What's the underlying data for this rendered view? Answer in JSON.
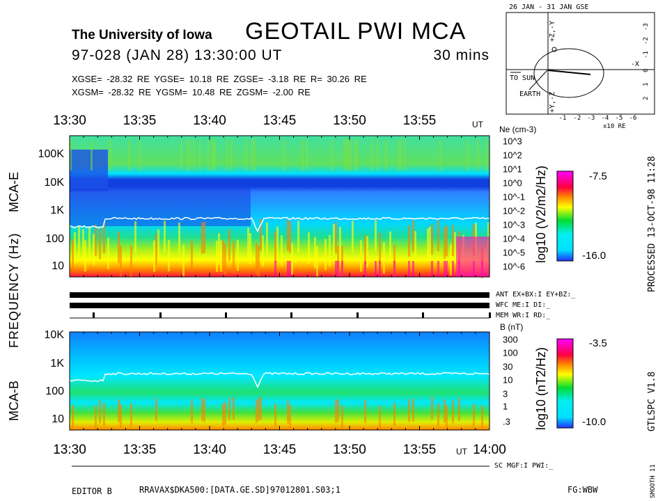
{
  "header": {
    "institution": "The University of Iowa",
    "title": "GEOTAIL PWI MCA",
    "date_line": "97-028 (JAN 28) 13:30:00 UT",
    "duration": "30 mins",
    "gse_line": "XGSE= -28.32 RE   YGSE=  10.18 RE   ZGSE=  -3.18 RE   R= 30.26 RE",
    "gsm_line": "XGSM= -28.32 RE   YGSM=  10.48 RE   ZGSM=  -2.00 RE"
  },
  "orbit_plot": {
    "title": "26 JAN - 31 JAN  GSE",
    "x_ticks": [
      "-1",
      "-2",
      "-3",
      "-4",
      "-5",
      "-6"
    ],
    "x_unit": "x10 RE",
    "y_ticks": [
      "-3",
      "-2",
      "-1",
      "0",
      "1",
      "2"
    ],
    "axis_label_top": "+Z,-Y",
    "axis_label_bottom": "+Y,-Z",
    "axis_label_right": "-X",
    "to_sun": "TO SUN",
    "earth": "EARTH"
  },
  "time_axis": {
    "labels": [
      "13:30",
      "13:35",
      "13:40",
      "13:45",
      "13:50",
      "13:55"
    ],
    "ut": "UT",
    "end": "14:00"
  },
  "left_labels": {
    "frequency": "FREQUENCY (Hz)",
    "mca_e": "MCA-E",
    "mca_b": "MCA-B"
  },
  "chart_data": [
    {
      "type": "heatmap",
      "name": "MCA-E",
      "x_range": [
        "13:30",
        "14:00"
      ],
      "ylabel": "FREQUENCY (Hz)",
      "y_scale": "log",
      "y_ticks": [
        "100K",
        "10K",
        "1K",
        "100",
        "10"
      ],
      "right_axis": {
        "label": "Ne (cm-3)",
        "ticks": [
          "10^3",
          "10^2",
          "10^1",
          "10^0",
          "10^-1",
          "10^-2",
          "10^-3",
          "10^-4",
          "10^-5",
          "10^-6"
        ]
      },
      "colorbar": {
        "label": "log10 (V2/m2/Hz)",
        "max": "-7.5",
        "min": "-16.0"
      },
      "colors": [
        "#2030ff",
        "#00e0ff",
        "#00dd30",
        "#ffff00",
        "#ff8000",
        "#ff0040",
        "#ff00ff"
      ]
    },
    {
      "type": "heatmap",
      "name": "MCA-B",
      "x_range": [
        "13:30",
        "14:00"
      ],
      "y_scale": "log",
      "y_ticks": [
        "10K",
        "1K",
        "100",
        "10"
      ],
      "right_axis": {
        "label": "B (nT)",
        "ticks": [
          "300",
          "100",
          "30",
          "10",
          "3",
          "1",
          ".3"
        ]
      },
      "colorbar": {
        "label": "log10 (nT2/Hz)",
        "max": "-3.5",
        "min": "-10.0"
      }
    }
  ],
  "status": {
    "ant": "ANT EX+BX:I  EY+BZ:_",
    "wfc": "WFC ME:I     DI:_",
    "mem": "MEM WR:I     RD:_",
    "sc": "SC MGF:I   PWI:_"
  },
  "right_labels": {
    "processed": "PROCESSED 13-OCT-98   11:28",
    "version": "GTLSPC   V1.8",
    "smooth": "SMOOTH 11"
  },
  "footer": {
    "editor": "EDITOR B",
    "file": "RRAVAX$DKA500:[DATA.GE.SD]97012801.S03;1",
    "fg": "FG:WBW"
  }
}
